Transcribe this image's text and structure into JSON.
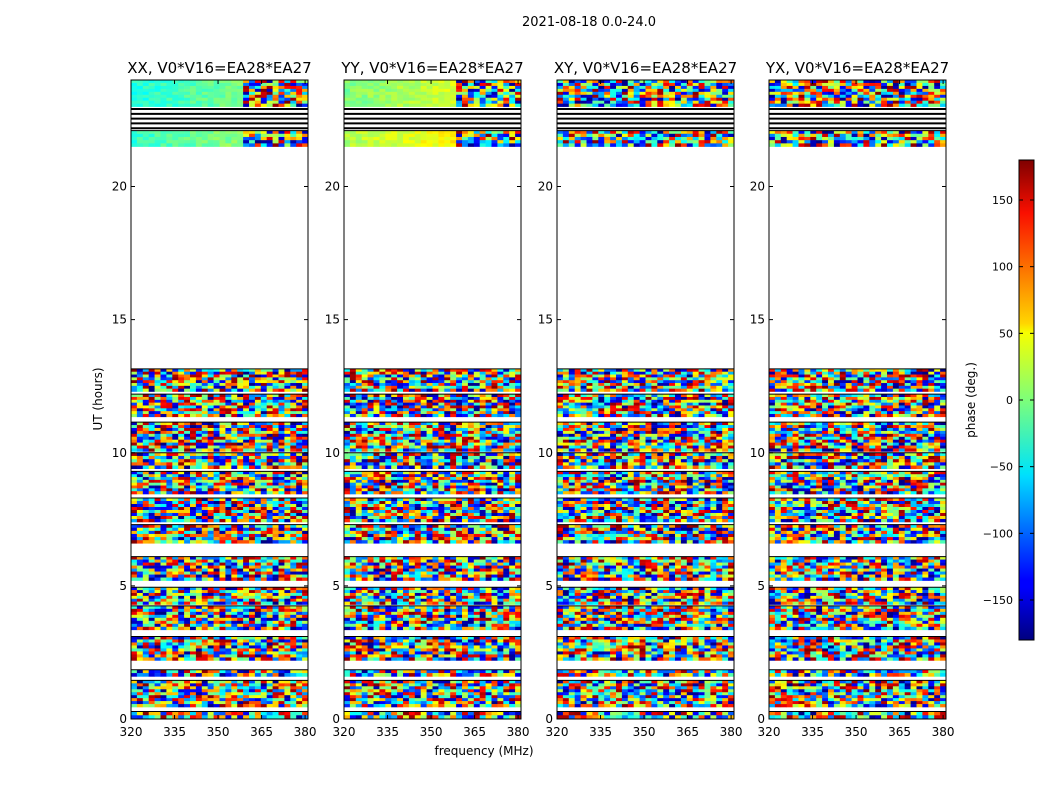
{
  "figure": {
    "suptitle": "2021-08-18 0.0-24.0",
    "xlabel": "frequency (MHz)",
    "ylabel": "UT (hours)"
  },
  "chart_data": {
    "type": "heatmap",
    "title": "2021-08-18 0.0-24.0",
    "xlabel": "frequency (MHz)",
    "ylabel": "UT (hours)",
    "xlim": [
      320,
      381
    ],
    "ylim": [
      0,
      24
    ],
    "x_ticks": [
      "320",
      "335",
      "350",
      "365",
      "380"
    ],
    "x_tick_values": [
      320,
      335,
      350,
      365,
      380
    ],
    "y_ticks": [
      "0",
      "5",
      "10",
      "15",
      "20"
    ],
    "y_tick_values": [
      0,
      5,
      10,
      15,
      20
    ],
    "colorscale": "jet",
    "colorbar": {
      "label": "phase (deg.)",
      "range": [
        -180,
        180
      ],
      "ticks": [
        "−150",
        "−100",
        "−50",
        "0",
        "50",
        "100",
        "150"
      ],
      "tick_values": [
        -150,
        -100,
        -50,
        0,
        50,
        100,
        150
      ]
    },
    "panels": [
      {
        "title": "XX, V0*V16=EA28*EA27",
        "pol": "XX",
        "character": "smooth"
      },
      {
        "title": "YY, V0*V16=EA28*EA27",
        "pol": "YY",
        "character": "smooth"
      },
      {
        "title": "XY, V0*V16=EA28*EA27",
        "pol": "XY",
        "character": "noisy"
      },
      {
        "title": "YX, V0*V16=EA28*EA27",
        "pol": "YX",
        "character": "noisy"
      }
    ],
    "data_blocks_hours": [
      [
        0.0,
        0.28
      ],
      [
        0.45,
        1.45
      ],
      [
        1.6,
        1.85
      ],
      [
        2.2,
        3.1
      ],
      [
        3.35,
        4.25
      ],
      [
        4.3,
        4.95
      ],
      [
        5.2,
        6.1
      ],
      [
        6.6,
        7.3
      ],
      [
        7.4,
        8.3
      ],
      [
        8.45,
        9.3
      ],
      [
        9.4,
        10.0
      ],
      [
        10.05,
        11.15
      ],
      [
        11.35,
        12.2
      ],
      [
        12.3,
        13.15
      ],
      [
        21.5,
        22.1
      ],
      [
        23.0,
        24.0
      ]
    ],
    "empty_bands_hours": [
      [
        13.15,
        21.5
      ],
      [
        22.1,
        23.0
      ]
    ]
  }
}
